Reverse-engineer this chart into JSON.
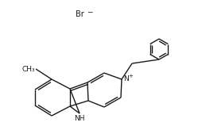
{
  "bg_color": "#ffffff",
  "line_color": "#1a1a1a",
  "line_width": 1.0,
  "font_size_label": 6.5,
  "font_size_br": 7.0,
  "figsize": [
    2.54,
    1.69
  ],
  "dpi": 100,
  "br_text": "Br",
  "br_sup": "−",
  "n_text": "N",
  "n_sup": "+",
  "nh_text": "NH",
  "me_text": "CH₃"
}
